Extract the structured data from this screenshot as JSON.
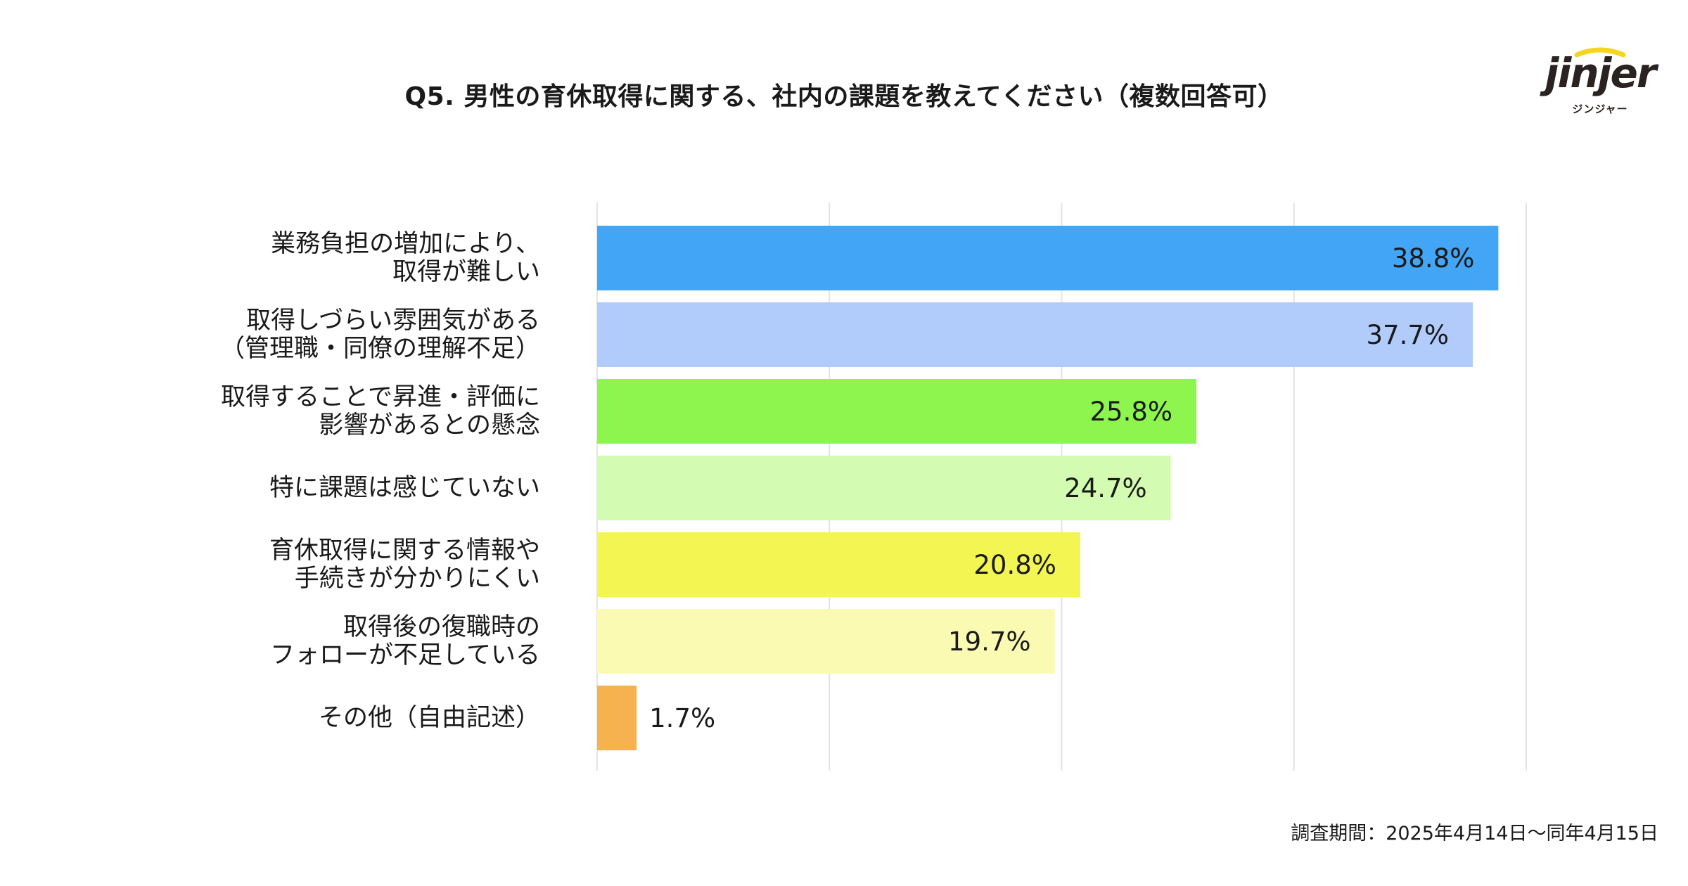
{
  "chart_data": {
    "type": "bar",
    "orientation": "horizontal",
    "title": "Q5. 男性の育休取得に関する、社内の課題を教えてください（複数回答可）",
    "categories": [
      [
        "業務負担の増加により、",
        "取得が難しい"
      ],
      [
        "取得しづらい雰囲気がある",
        "（管理職・同僚の理解不足）"
      ],
      [
        "取得することで昇進・評価に",
        "影響があるとの懸念"
      ],
      [
        "特に課題は感じていない"
      ],
      [
        "育休取得に関する情報や",
        "手続きが分かりにくい"
      ],
      [
        "取得後の復職時の",
        "フォローが不足している"
      ],
      [
        "その他（自由記述）"
      ]
    ],
    "values": [
      38.8,
      37.7,
      25.8,
      24.7,
      20.8,
      19.7,
      1.7
    ],
    "value_labels": [
      "38.8%",
      "37.7%",
      "25.8%",
      "24.7%",
      "20.8%",
      "19.7%",
      "1.7%"
    ],
    "bar_colors": [
      "#42a5f5",
      "#b1cbfb",
      "#8ef54f",
      "#d3fbb2",
      "#f3f553",
      "#fbfab3",
      "#f6b24e"
    ],
    "xlim": [
      0,
      40
    ],
    "grid": true,
    "legend": "none"
  },
  "logo": {
    "wordmark": "jinjer",
    "subtitle": "ジンジャー",
    "accent_color": "#f5d51e"
  },
  "footer": {
    "survey_period": "調査期間：2025年4月14日〜同年4月15日"
  }
}
